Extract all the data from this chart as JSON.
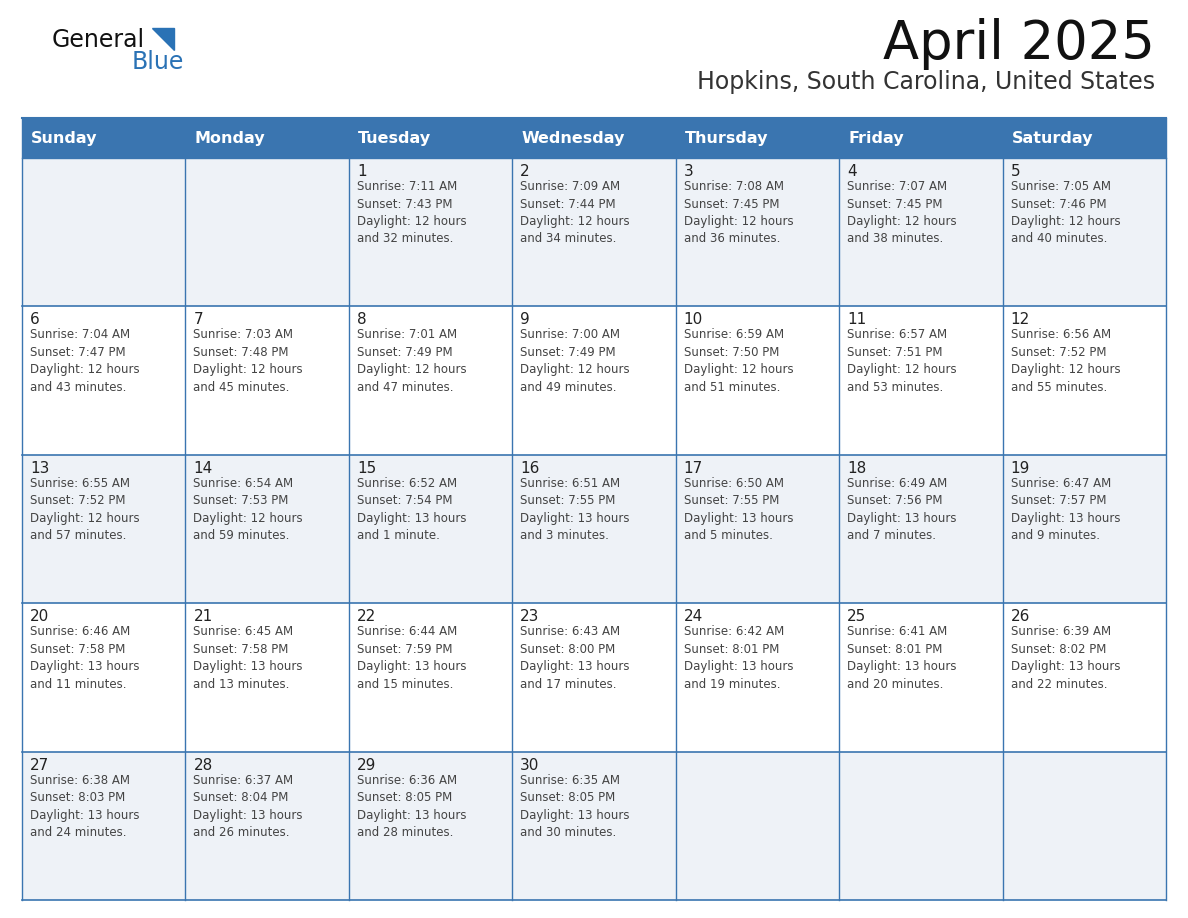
{
  "title": "April 2025",
  "subtitle": "Hopkins, South Carolina, United States",
  "days_of_week": [
    "Sunday",
    "Monday",
    "Tuesday",
    "Wednesday",
    "Thursday",
    "Friday",
    "Saturday"
  ],
  "header_bg": "#3a75b0",
  "header_text": "#ffffff",
  "row_bg_light": "#eef2f7",
  "row_bg_white": "#ffffff",
  "cell_border": "#3a75b0",
  "day_num_color": "#222222",
  "content_color": "#444444",
  "title_color": "#111111",
  "subtitle_color": "#333333",
  "logo_general_color": "#111111",
  "logo_blue_color": "#2a72b5",
  "calendar_data": [
    [
      {
        "day": "",
        "info": ""
      },
      {
        "day": "",
        "info": ""
      },
      {
        "day": "1",
        "info": "Sunrise: 7:11 AM\nSunset: 7:43 PM\nDaylight: 12 hours\nand 32 minutes."
      },
      {
        "day": "2",
        "info": "Sunrise: 7:09 AM\nSunset: 7:44 PM\nDaylight: 12 hours\nand 34 minutes."
      },
      {
        "day": "3",
        "info": "Sunrise: 7:08 AM\nSunset: 7:45 PM\nDaylight: 12 hours\nand 36 minutes."
      },
      {
        "day": "4",
        "info": "Sunrise: 7:07 AM\nSunset: 7:45 PM\nDaylight: 12 hours\nand 38 minutes."
      },
      {
        "day": "5",
        "info": "Sunrise: 7:05 AM\nSunset: 7:46 PM\nDaylight: 12 hours\nand 40 minutes."
      }
    ],
    [
      {
        "day": "6",
        "info": "Sunrise: 7:04 AM\nSunset: 7:47 PM\nDaylight: 12 hours\nand 43 minutes."
      },
      {
        "day": "7",
        "info": "Sunrise: 7:03 AM\nSunset: 7:48 PM\nDaylight: 12 hours\nand 45 minutes."
      },
      {
        "day": "8",
        "info": "Sunrise: 7:01 AM\nSunset: 7:49 PM\nDaylight: 12 hours\nand 47 minutes."
      },
      {
        "day": "9",
        "info": "Sunrise: 7:00 AM\nSunset: 7:49 PM\nDaylight: 12 hours\nand 49 minutes."
      },
      {
        "day": "10",
        "info": "Sunrise: 6:59 AM\nSunset: 7:50 PM\nDaylight: 12 hours\nand 51 minutes."
      },
      {
        "day": "11",
        "info": "Sunrise: 6:57 AM\nSunset: 7:51 PM\nDaylight: 12 hours\nand 53 minutes."
      },
      {
        "day": "12",
        "info": "Sunrise: 6:56 AM\nSunset: 7:52 PM\nDaylight: 12 hours\nand 55 minutes."
      }
    ],
    [
      {
        "day": "13",
        "info": "Sunrise: 6:55 AM\nSunset: 7:52 PM\nDaylight: 12 hours\nand 57 minutes."
      },
      {
        "day": "14",
        "info": "Sunrise: 6:54 AM\nSunset: 7:53 PM\nDaylight: 12 hours\nand 59 minutes."
      },
      {
        "day": "15",
        "info": "Sunrise: 6:52 AM\nSunset: 7:54 PM\nDaylight: 13 hours\nand 1 minute."
      },
      {
        "day": "16",
        "info": "Sunrise: 6:51 AM\nSunset: 7:55 PM\nDaylight: 13 hours\nand 3 minutes."
      },
      {
        "day": "17",
        "info": "Sunrise: 6:50 AM\nSunset: 7:55 PM\nDaylight: 13 hours\nand 5 minutes."
      },
      {
        "day": "18",
        "info": "Sunrise: 6:49 AM\nSunset: 7:56 PM\nDaylight: 13 hours\nand 7 minutes."
      },
      {
        "day": "19",
        "info": "Sunrise: 6:47 AM\nSunset: 7:57 PM\nDaylight: 13 hours\nand 9 minutes."
      }
    ],
    [
      {
        "day": "20",
        "info": "Sunrise: 6:46 AM\nSunset: 7:58 PM\nDaylight: 13 hours\nand 11 minutes."
      },
      {
        "day": "21",
        "info": "Sunrise: 6:45 AM\nSunset: 7:58 PM\nDaylight: 13 hours\nand 13 minutes."
      },
      {
        "day": "22",
        "info": "Sunrise: 6:44 AM\nSunset: 7:59 PM\nDaylight: 13 hours\nand 15 minutes."
      },
      {
        "day": "23",
        "info": "Sunrise: 6:43 AM\nSunset: 8:00 PM\nDaylight: 13 hours\nand 17 minutes."
      },
      {
        "day": "24",
        "info": "Sunrise: 6:42 AM\nSunset: 8:01 PM\nDaylight: 13 hours\nand 19 minutes."
      },
      {
        "day": "25",
        "info": "Sunrise: 6:41 AM\nSunset: 8:01 PM\nDaylight: 13 hours\nand 20 minutes."
      },
      {
        "day": "26",
        "info": "Sunrise: 6:39 AM\nSunset: 8:02 PM\nDaylight: 13 hours\nand 22 minutes."
      }
    ],
    [
      {
        "day": "27",
        "info": "Sunrise: 6:38 AM\nSunset: 8:03 PM\nDaylight: 13 hours\nand 24 minutes."
      },
      {
        "day": "28",
        "info": "Sunrise: 6:37 AM\nSunset: 8:04 PM\nDaylight: 13 hours\nand 26 minutes."
      },
      {
        "day": "29",
        "info": "Sunrise: 6:36 AM\nSunset: 8:05 PM\nDaylight: 13 hours\nand 28 minutes."
      },
      {
        "day": "30",
        "info": "Sunrise: 6:35 AM\nSunset: 8:05 PM\nDaylight: 13 hours\nand 30 minutes."
      },
      {
        "day": "",
        "info": ""
      },
      {
        "day": "",
        "info": ""
      },
      {
        "day": "",
        "info": ""
      }
    ]
  ]
}
